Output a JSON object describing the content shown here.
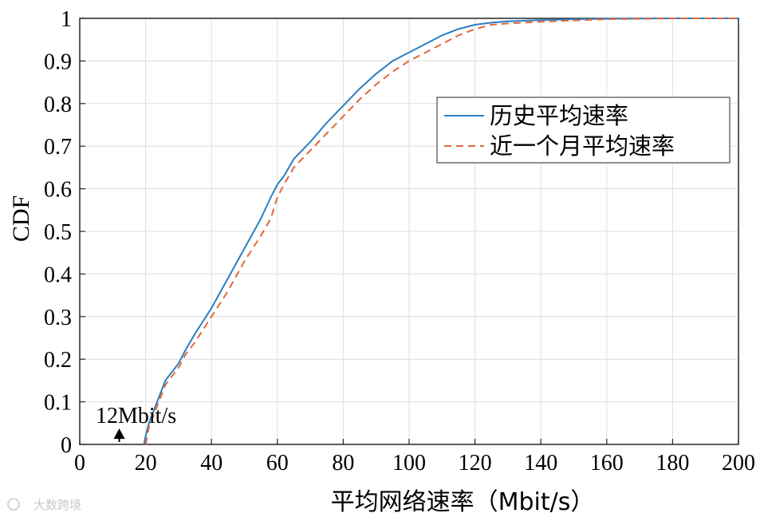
{
  "chart_data": {
    "type": "line",
    "title": "",
    "xlabel": "平均网络速率（Mbit/s）",
    "ylabel": "CDF",
    "xlim": [
      0,
      200
    ],
    "ylim": [
      0,
      1
    ],
    "xticks": [
      0,
      20,
      40,
      60,
      80,
      100,
      120,
      140,
      160,
      180,
      200
    ],
    "yticks": [
      0,
      0.1,
      0.2,
      0.3,
      0.4,
      0.5,
      0.6,
      0.7,
      0.8,
      0.9,
      1
    ],
    "grid": true,
    "legend_position": "top-right",
    "annotation": {
      "text": "12Mbit/s",
      "x": 12,
      "y": 0
    },
    "series": [
      {
        "name": "历史平均速率",
        "color": "#2b7fc1",
        "style": "solid",
        "x": [
          19.5,
          20,
          21,
          22,
          23,
          24,
          25,
          26,
          28,
          30,
          32,
          35,
          40,
          45,
          50,
          55,
          58,
          60,
          62,
          65,
          70,
          75,
          80,
          85,
          90,
          95,
          100,
          105,
          110,
          115,
          120,
          125,
          130,
          140,
          150,
          160,
          180,
          200
        ],
        "y": [
          0,
          0.02,
          0.05,
          0.07,
          0.09,
          0.11,
          0.13,
          0.15,
          0.17,
          0.19,
          0.22,
          0.26,
          0.32,
          0.39,
          0.46,
          0.53,
          0.58,
          0.61,
          0.63,
          0.67,
          0.71,
          0.755,
          0.795,
          0.835,
          0.87,
          0.9,
          0.92,
          0.94,
          0.96,
          0.975,
          0.985,
          0.99,
          0.993,
          0.996,
          0.998,
          0.999,
          1,
          1
        ]
      },
      {
        "name": "近一个月平均速率",
        "color": "#e0683a",
        "style": "dashed",
        "x": [
          20,
          21,
          22,
          23,
          24,
          25,
          26,
          28,
          30,
          32,
          35,
          40,
          45,
          50,
          55,
          58,
          60,
          62,
          65,
          70,
          75,
          80,
          85,
          90,
          95,
          100,
          105,
          110,
          115,
          120,
          125,
          130,
          140,
          150,
          160,
          180,
          200
        ],
        "y": [
          0,
          0.04,
          0.06,
          0.08,
          0.1,
          0.12,
          0.14,
          0.16,
          0.18,
          0.21,
          0.24,
          0.3,
          0.36,
          0.43,
          0.49,
          0.53,
          0.58,
          0.61,
          0.65,
          0.69,
          0.73,
          0.77,
          0.81,
          0.845,
          0.875,
          0.9,
          0.92,
          0.94,
          0.96,
          0.975,
          0.985,
          0.988,
          0.992,
          0.995,
          0.998,
          1,
          1
        ]
      }
    ]
  },
  "watermark": "大数跨境"
}
